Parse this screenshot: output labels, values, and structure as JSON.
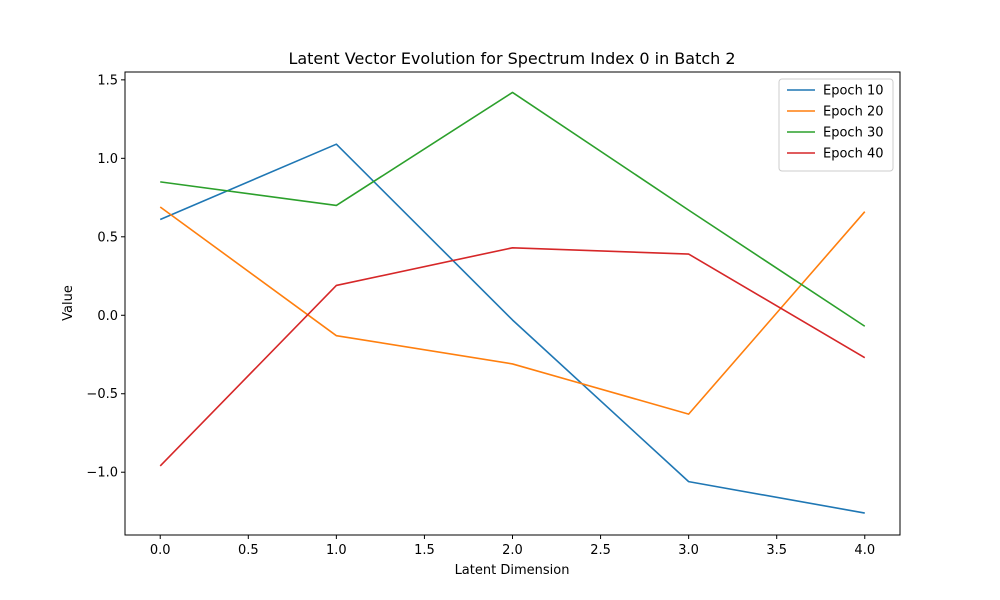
{
  "chart_data": {
    "type": "line",
    "title": "Latent Vector Evolution for Spectrum Index 0 in Batch 2",
    "xlabel": "Latent Dimension",
    "ylabel": "Value",
    "x": [
      0,
      1,
      2,
      3,
      4
    ],
    "xticks": [
      "0.0",
      "0.5",
      "1.0",
      "1.5",
      "2.0",
      "2.5",
      "3.0",
      "3.5",
      "4.0"
    ],
    "yticks": [
      "−1.0",
      "−0.5",
      "0.0",
      "0.5",
      "1.0",
      "1.5"
    ],
    "xlim": [
      -0.2,
      4.2
    ],
    "ylim": [
      -1.4,
      1.55
    ],
    "grid": false,
    "legend_position": "top-right",
    "series": [
      {
        "name": "Epoch 10",
        "color": "#1f77b4",
        "values": [
          0.61,
          1.09,
          -0.03,
          -1.06,
          -1.26
        ]
      },
      {
        "name": "Epoch 20",
        "color": "#ff7f0e",
        "values": [
          0.69,
          -0.13,
          -0.31,
          -0.63,
          0.66
        ]
      },
      {
        "name": "Epoch 30",
        "color": "#2ca02c",
        "values": [
          0.85,
          0.7,
          1.42,
          0.67,
          -0.07
        ]
      },
      {
        "name": "Epoch 40",
        "color": "#d62728",
        "values": [
          -0.96,
          0.19,
          0.43,
          0.39,
          -0.27
        ]
      }
    ]
  }
}
